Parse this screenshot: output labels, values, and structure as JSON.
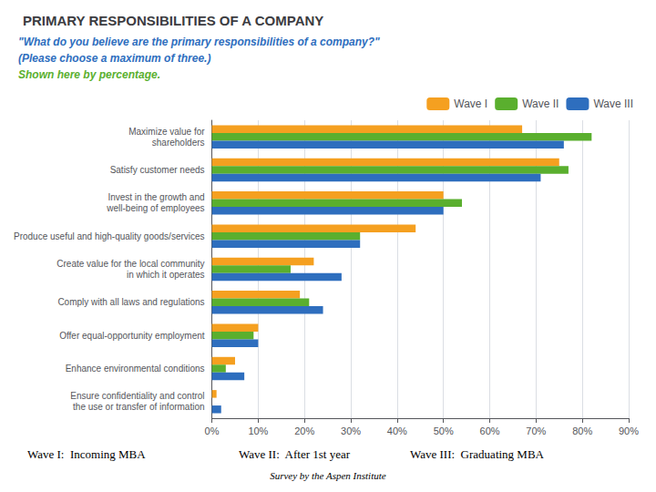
{
  "chart_data": {
    "type": "bar",
    "orientation": "horizontal",
    "title": "PRIMARY RESPONSIBILITIES OF A COMPANY",
    "subtitle": [
      "\"What do you believe are the primary responsibilities of a company?\"",
      "(Please choose a maximum of three.)",
      "Shown here by percentage."
    ],
    "categories": [
      "Maximize value for\nshareholders",
      "Satisfy customer needs",
      "Invest in the growth and\nwell-being of employees",
      "Produce useful and high-quality goods/services",
      "Create value for the local community\nin which it operates",
      "Comply with all laws and regulations",
      "Offer equal-opportunity employment",
      "Enhance environmental conditions",
      "Ensure confidentiality and control\nthe use or transfer of information"
    ],
    "series": [
      {
        "name": "Wave I",
        "color": "#F5A020",
        "values": [
          67,
          75,
          50,
          44,
          22,
          19,
          10,
          5,
          1
        ]
      },
      {
        "name": "Wave II",
        "color": "#5AAF2E",
        "values": [
          82,
          77,
          54,
          32,
          17,
          21,
          9,
          3,
          0
        ]
      },
      {
        "name": "Wave III",
        "color": "#2E6EBE",
        "values": [
          76,
          71,
          50,
          32,
          28,
          24,
          10,
          7,
          2
        ]
      }
    ],
    "xlim": [
      0,
      90
    ],
    "xticks": [
      {
        "value": 0,
        "label": "0%"
      },
      {
        "value": 10,
        "label": "10%"
      },
      {
        "value": 20,
        "label": "20%"
      },
      {
        "value": 30,
        "label": "30%"
      },
      {
        "value": 40,
        "label": "40%"
      },
      {
        "value": 50,
        "label": "50%"
      },
      {
        "value": 60,
        "label": "60%"
      },
      {
        "value": 70,
        "label": "70%"
      },
      {
        "value": 80,
        "label": "80%"
      },
      {
        "value": 90,
        "label": "90%"
      }
    ],
    "grid": true,
    "legend": "top right",
    "annotations": [
      "Wave I:  Incoming MBA",
      "Wave II:  After 1st year",
      "Wave III:  Graduating MBA",
      "Survey by the Aspen Institute"
    ]
  }
}
